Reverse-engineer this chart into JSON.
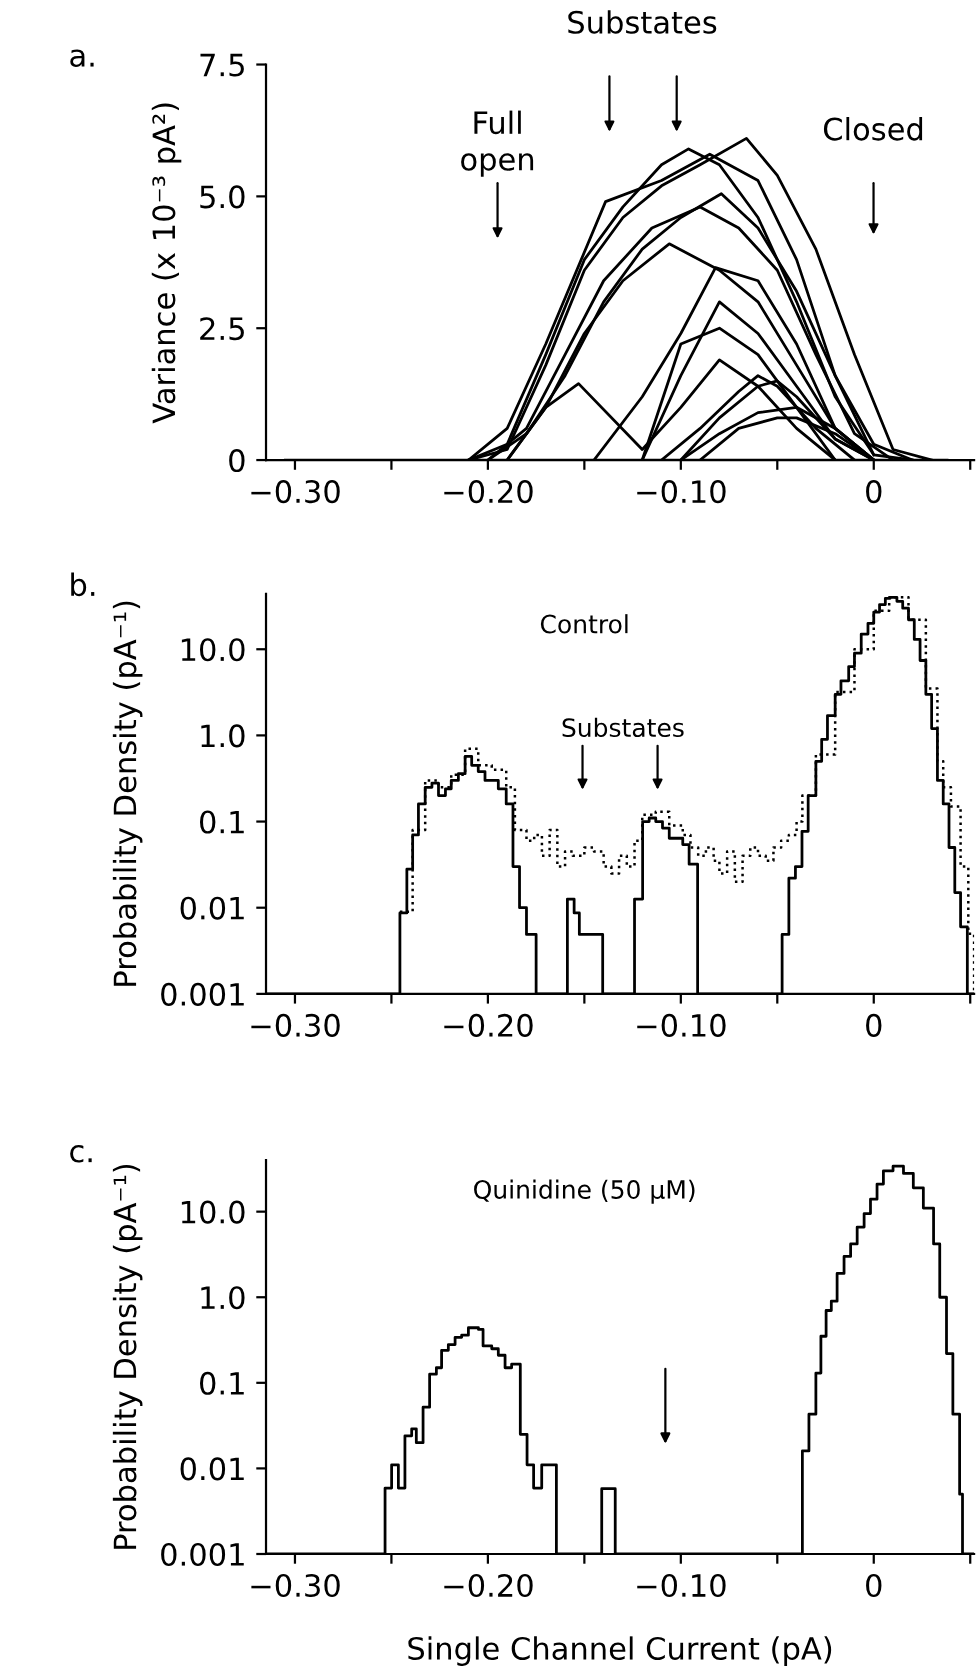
{
  "chart_data": [
    {
      "type": "line",
      "ylabel": "Variance (x 10⁻³ pA²)",
      "xlim": [
        -0.315,
        0.052
      ],
      "ylim": [
        0,
        7.5
      ],
      "xticks": [
        {
          "value": -0.3,
          "label": "−0.30"
        },
        {
          "value": -0.25,
          "label": null
        },
        {
          "value": -0.2,
          "label": "−0.20"
        },
        {
          "value": -0.15,
          "label": null
        },
        {
          "value": -0.1,
          "label": "−0.10"
        },
        {
          "value": -0.05,
          "label": null
        },
        0,
        {
          "value": 0.05,
          "label": null
        }
      ],
      "yticks": [
        0,
        2.5,
        {
          "value": 5,
          "label": "5.0"
        },
        7.5
      ],
      "annotations": [
        "a.",
        "Full\nopen",
        "Substates",
        "Closed"
      ],
      "series": [
        {
          "color": "#000000",
          "x": [
            -0.305,
            0.038
          ],
          "values": [
            0,
            0
          ]
        },
        {
          "color": "#000000",
          "x": [
            -0.21,
            -0.19,
            -0.17,
            -0.15,
            -0.13,
            -0.11,
            -0.09,
            -0.066,
            -0.05,
            -0.03,
            -0.01,
            0.01,
            0.03
          ],
          "values": [
            0,
            0.2,
            1.8,
            3.6,
            4.6,
            5.2,
            5.6,
            6.1,
            5.4,
            4.0,
            2.0,
            0.2,
            0
          ]
        },
        {
          "color": "#000000",
          "x": [
            -0.21,
            -0.19,
            -0.17,
            -0.15,
            -0.13,
            -0.11,
            -0.096,
            -0.08,
            -0.06,
            -0.04,
            -0.02,
            0,
            0.02
          ],
          "values": [
            0,
            0.3,
            2.0,
            3.8,
            4.8,
            5.6,
            5.9,
            5.6,
            4.6,
            3.0,
            1.2,
            0.1,
            0
          ]
        },
        {
          "color": "#000000",
          "x": [
            -0.21,
            -0.19,
            -0.17,
            -0.139,
            -0.11,
            -0.085,
            -0.06,
            -0.04,
            -0.02,
            0
          ],
          "values": [
            0,
            0.6,
            2.2,
            4.9,
            5.3,
            5.8,
            5.3,
            3.8,
            1.6,
            0.1
          ]
        },
        {
          "color": "#000000",
          "x": [
            -0.2,
            -0.18,
            -0.16,
            -0.14,
            -0.12,
            -0.1,
            -0.079,
            -0.06,
            -0.04,
            -0.02,
            0.0,
            0.02
          ],
          "values": [
            0,
            0.5,
            1.6,
            3.0,
            4.0,
            4.6,
            5.05,
            4.4,
            3.2,
            1.6,
            0.3,
            0
          ]
        },
        {
          "color": "#000000",
          "x": [
            -0.2,
            -0.18,
            -0.16,
            -0.14,
            -0.115,
            -0.09,
            -0.07,
            -0.05,
            -0.03,
            -0.01,
            0.01
          ],
          "values": [
            0,
            0.6,
            2.0,
            3.4,
            4.4,
            4.8,
            4.4,
            3.6,
            2.0,
            0.5,
            0
          ]
        },
        {
          "color": "#000000",
          "x": [
            -0.19,
            -0.17,
            -0.15,
            -0.13,
            -0.106,
            -0.08,
            -0.06,
            -0.04,
            -0.02,
            0
          ],
          "values": [
            0,
            1.0,
            2.4,
            3.4,
            4.1,
            3.6,
            3.0,
            1.8,
            0.6,
            0
          ]
        },
        {
          "color": "#000000",
          "x": [
            -0.145,
            -0.12,
            -0.1,
            -0.082,
            -0.06,
            -0.04,
            -0.02,
            0
          ],
          "values": [
            0,
            1.2,
            2.4,
            3.65,
            3.4,
            2.2,
            0.6,
            0
          ]
        },
        {
          "color": "#000000",
          "x": [
            -0.12,
            -0.1,
            -0.08,
            -0.06,
            -0.04,
            -0.02,
            0
          ],
          "values": [
            0,
            1.6,
            3.0,
            2.4,
            1.4,
            0.4,
            0
          ]
        },
        {
          "color": "#000000",
          "x": [
            -0.19,
            -0.17,
            -0.153,
            -0.12,
            -0.1,
            -0.08,
            -0.06,
            -0.04,
            -0.02
          ],
          "values": [
            0,
            1.0,
            1.45,
            0.2,
            1.0,
            1.9,
            1.4,
            0.6,
            0
          ]
        },
        {
          "color": "#000000",
          "x": [
            -0.12,
            -0.1,
            -0.08,
            -0.06,
            -0.04,
            -0.02
          ],
          "values": [
            0,
            2.2,
            2.5,
            2.0,
            1.0,
            0
          ]
        },
        {
          "color": "#000000",
          "x": [
            -0.11,
            -0.09,
            -0.07,
            -0.06,
            -0.05,
            -0.03,
            -0.01
          ],
          "values": [
            0,
            0.6,
            1.3,
            1.6,
            1.4,
            0.6,
            0
          ]
        },
        {
          "color": "#000000",
          "x": [
            -0.1,
            -0.08,
            -0.06,
            -0.05,
            -0.04,
            -0.02,
            0
          ],
          "values": [
            0,
            0.8,
            1.4,
            1.5,
            1.2,
            0.4,
            0
          ]
        },
        {
          "color": "#000000",
          "x": [
            -0.1,
            -0.08,
            -0.06,
            -0.04,
            -0.02,
            0
          ],
          "values": [
            0,
            0.5,
            0.9,
            1.0,
            0.6,
            0
          ]
        },
        {
          "color": "#000000",
          "x": [
            -0.09,
            -0.07,
            -0.05,
            -0.04,
            -0.02,
            0
          ],
          "values": [
            0,
            0.6,
            0.8,
            0.8,
            0.5,
            0
          ]
        }
      ]
    },
    {
      "type": "step",
      "title": "Control",
      "ylabel": "Probability Density (pA⁻¹)",
      "log": true,
      "xlim": [
        -0.315,
        0.052
      ],
      "ylim": [
        0.001,
        44
      ],
      "xticks": [
        {
          "value": -0.3,
          "label": "−0.30"
        },
        {
          "value": -0.25,
          "label": null
        },
        {
          "value": -0.2,
          "label": "−0.20"
        },
        {
          "value": -0.15,
          "label": null
        },
        {
          "value": -0.1,
          "label": "−0.10"
        },
        {
          "value": -0.05,
          "label": null
        },
        0,
        {
          "value": 0.05,
          "label": null
        }
      ],
      "yticks": [
        0.001,
        0.01,
        0.1,
        {
          "value": 1,
          "label": "1.0"
        },
        {
          "value": 10,
          "label": "10.0"
        }
      ],
      "annotations": [
        "b.",
        "Substates"
      ],
      "series": [
        {
          "color": "#000000",
          "line_style": "solid",
          "x": [
            -0.315,
            -0.2456,
            -0.242,
            -0.239,
            -0.236,
            -0.2325,
            -0.229,
            -0.2256,
            -0.222,
            -0.219,
            -0.2153,
            -0.2118,
            -0.2084,
            -0.205,
            -0.2015,
            -0.198,
            -0.1946,
            -0.1905,
            -0.187,
            -0.1836,
            -0.18,
            -0.175,
            -0.1588,
            -0.1553,
            -0.1526,
            -0.1405,
            -0.124,
            -0.1198,
            -0.1164,
            -0.113,
            -0.1095,
            -0.106,
            -0.099,
            -0.0957,
            -0.0913,
            -0.0475,
            -0.044,
            -0.0406,
            -0.0372,
            -0.034,
            -0.03,
            -0.027,
            -0.024,
            -0.02,
            -0.017,
            -0.013,
            -0.01,
            -0.0065,
            -0.003,
            0.0,
            0.003,
            0.006,
            0.0085,
            0.012,
            0.015,
            0.018,
            0.021,
            0.024,
            0.027,
            0.03,
            0.033,
            0.036,
            0.039,
            0.042,
            0.045,
            0.0485,
            0.052
          ],
          "values": [
            0.001,
            0.0087,
            0.028,
            0.07,
            0.16,
            0.25,
            0.28,
            0.2,
            0.24,
            0.3,
            0.36,
            0.57,
            0.45,
            0.38,
            0.3,
            0.3,
            0.24,
            0.16,
            0.03,
            0.01,
            0.0049,
            0.001,
            0.0126,
            0.0087,
            0.0049,
            0.001,
            0.0126,
            0.1,
            0.11,
            0.1,
            0.084,
            0.064,
            0.054,
            0.032,
            0.001,
            0.0049,
            0.022,
            0.03,
            0.077,
            0.2,
            0.5,
            0.9,
            1.7,
            3,
            4.3,
            6.3,
            9,
            15,
            20,
            27,
            33,
            39,
            40,
            36,
            30,
            22,
            13,
            7.4,
            3,
            1.2,
            0.3,
            0.16,
            0.05,
            0.015,
            0.006,
            0.001,
            0.001
          ]
        },
        {
          "color": "#000000",
          "line_style": "dotted",
          "x": [
            -0.2456,
            -0.239,
            -0.2325,
            -0.2256,
            -0.219,
            -0.2118,
            -0.205,
            -0.198,
            -0.1905,
            -0.186,
            -0.18,
            -0.176,
            -0.172,
            -0.168,
            -0.164,
            -0.16,
            -0.156,
            -0.15,
            -0.145,
            -0.14,
            -0.136,
            -0.132,
            -0.128,
            -0.124,
            -0.12,
            -0.113,
            -0.106,
            -0.099,
            -0.095,
            -0.091,
            -0.087,
            -0.083,
            -0.08,
            -0.076,
            -0.072,
            -0.068,
            -0.064,
            -0.06,
            -0.056,
            -0.052,
            -0.048,
            -0.044,
            -0.04,
            -0.037,
            -0.03,
            -0.02,
            -0.01,
            0.0,
            0.008,
            0.018,
            0.027,
            0.033,
            0.036,
            0.04,
            0.045,
            0.049,
            0.052
          ],
          "values": [
            0.009,
            0.08,
            0.3,
            0.25,
            0.35,
            0.7,
            0.45,
            0.4,
            0.25,
            0.08,
            0.06,
            0.07,
            0.04,
            0.08,
            0.03,
            0.045,
            0.04,
            0.05,
            0.045,
            0.03,
            0.025,
            0.04,
            0.03,
            0.06,
            0.12,
            0.13,
            0.09,
            0.07,
            0.05,
            0.04,
            0.05,
            0.035,
            0.025,
            0.045,
            0.02,
            0.04,
            0.05,
            0.04,
            0.035,
            0.05,
            0.06,
            0.07,
            0.1,
            0.2,
            0.6,
            3.2,
            10,
            28,
            40,
            22,
            3.5,
            0.5,
            0.25,
            0.15,
            0.03,
            0.005,
            0.001
          ]
        }
      ]
    },
    {
      "type": "step",
      "title": "Quinidine (50 µM)",
      "xlabel": "Single Channel Current (pA)",
      "ylabel": "Probability Density (pA⁻¹)",
      "log": true,
      "xlim": [
        -0.315,
        0.052
      ],
      "ylim": [
        0.001,
        40
      ],
      "xticks": [
        {
          "value": -0.3,
          "label": "−0.30"
        },
        {
          "value": -0.25,
          "label": null
        },
        {
          "value": -0.2,
          "label": "−0.20"
        },
        {
          "value": -0.15,
          "label": null
        },
        {
          "value": -0.1,
          "label": "−0.10"
        },
        {
          "value": -0.05,
          "label": null
        },
        0,
        {
          "value": 0.05,
          "label": null
        }
      ],
      "yticks": [
        0.001,
        0.01,
        0.1,
        {
          "value": 1,
          "label": "1.0"
        },
        {
          "value": 10,
          "label": "10.0"
        }
      ],
      "annotations": [
        "c."
      ],
      "series": [
        {
          "color": "#000000",
          "x": [
            -0.315,
            -0.2533,
            -0.2499,
            -0.2464,
            -0.243,
            -0.2395,
            -0.2371,
            -0.2336,
            -0.2302,
            -0.2267,
            -0.224,
            -0.2205,
            -0.217,
            -0.2136,
            -0.2101,
            -0.2049,
            -0.2025,
            -0.198,
            -0.1946,
            -0.1911,
            -0.1877,
            -0.1832,
            -0.1797,
            -0.1763,
            -0.1721,
            -0.1645,
            -0.141,
            -0.134,
            -0.037,
            -0.0336,
            -0.03,
            -0.0274,
            -0.0247,
            -0.022,
            -0.019,
            -0.0154,
            -0.012,
            -0.0086,
            -0.005,
            -0.0017,
            0.0017,
            0.005,
            0.01,
            0.0154,
            0.0205,
            0.0257,
            0.031,
            0.0342,
            0.0377,
            0.041,
            0.0445,
            0.046,
            0.052
          ],
          "values": [
            0.001,
            0.0059,
            0.011,
            0.0059,
            0.024,
            0.029,
            0.02,
            0.052,
            0.126,
            0.15,
            0.24,
            0.28,
            0.34,
            0.36,
            0.44,
            0.42,
            0.27,
            0.25,
            0.21,
            0.15,
            0.165,
            0.025,
            0.011,
            0.0059,
            0.011,
            0.001,
            0.0058,
            0.001,
            0.016,
            0.043,
            0.13,
            0.35,
            0.7,
            0.9,
            1.9,
            3,
            4.2,
            6.6,
            9.5,
            14,
            21,
            30,
            34,
            28,
            19,
            11,
            4.2,
            1,
            0.22,
            0.043,
            0.005,
            0.001,
            0.001
          ]
        }
      ]
    }
  ]
}
